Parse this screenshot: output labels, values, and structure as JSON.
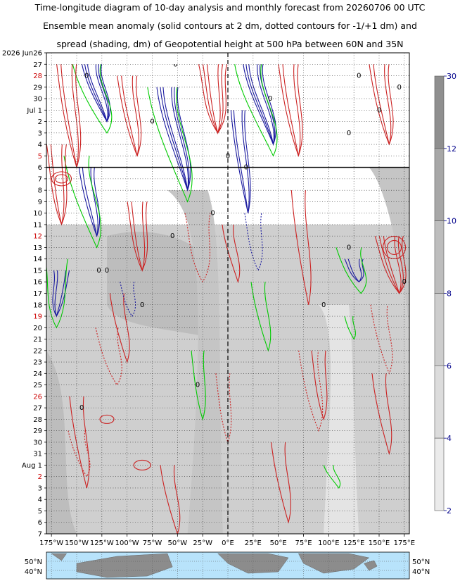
{
  "title": {
    "line1": "Time-longitude diagram of 10-day analysis and monthly forecast from 20260706 00 UTC",
    "line2": "Ensemble mean anomaly (solid contours at 2 dm, dotted contours for -1/+1 dm) and",
    "line3": "spread (shading, dm) of Geopotential height at 500 hPa between 60N and 35N"
  },
  "chart_data": {
    "type": "heatmap",
    "title": "Time-longitude diagram of 10-day analysis and monthly forecast from 20260706 00 UTC",
    "x_axis": {
      "range": [
        -180,
        180
      ],
      "ticks": [
        -175,
        -150,
        -125,
        -100,
        -75,
        -50,
        -25,
        0,
        25,
        50,
        75,
        100,
        125,
        150,
        175
      ],
      "tick_labels": [
        "175°W",
        "150°W",
        "125°W",
        "100°W",
        "75°W",
        "50°W",
        "25°W",
        "0°E",
        "25°E",
        "50°E",
        "75°E",
        "100°E",
        "125°E",
        "150°E",
        "175°E"
      ]
    },
    "y_axis": {
      "start": "2026 Jun 26",
      "labels": [
        {
          "text": "2026 Jun26",
          "red": false
        },
        {
          "text": "27",
          "red": false
        },
        {
          "text": "28",
          "red": true
        },
        {
          "text": "29",
          "red": false
        },
        {
          "text": "30",
          "red": false
        },
        {
          "text": "Jul  1",
          "red": false
        },
        {
          "text": "2",
          "red": false
        },
        {
          "text": "3",
          "red": false
        },
        {
          "text": "4",
          "red": false
        },
        {
          "text": "5",
          "red": true
        },
        {
          "text": "6",
          "red": false
        },
        {
          "text": "7",
          "red": false
        },
        {
          "text": "8",
          "red": false
        },
        {
          "text": "9",
          "red": false
        },
        {
          "text": "10",
          "red": false
        },
        {
          "text": "11",
          "red": false
        },
        {
          "text": "12",
          "red": true
        },
        {
          "text": "13",
          "red": false
        },
        {
          "text": "14",
          "red": false
        },
        {
          "text": "15",
          "red": false
        },
        {
          "text": "16",
          "red": false
        },
        {
          "text": "17",
          "red": false
        },
        {
          "text": "18",
          "red": false
        },
        {
          "text": "19",
          "red": true
        },
        {
          "text": "20",
          "red": false
        },
        {
          "text": "21",
          "red": false
        },
        {
          "text": "22",
          "red": false
        },
        {
          "text": "23",
          "red": false
        },
        {
          "text": "24",
          "red": false
        },
        {
          "text": "25",
          "red": false
        },
        {
          "text": "26",
          "red": true
        },
        {
          "text": "27",
          "red": false
        },
        {
          "text": "28",
          "red": false
        },
        {
          "text": "29",
          "red": false
        },
        {
          "text": "30",
          "red": false
        },
        {
          "text": "31",
          "red": false
        },
        {
          "text": "Aug  1",
          "red": false
        },
        {
          "text": "2",
          "red": true
        },
        {
          "text": "3",
          "red": false
        },
        {
          "text": "4",
          "red": false
        },
        {
          "text": "5",
          "red": false
        },
        {
          "text": "6",
          "red": false
        },
        {
          "text": "7",
          "red": false
        }
      ],
      "analysis_forecast_boundary": "Jul 6"
    },
    "colorbar": {
      "label_values": [
        30,
        12,
        10,
        8,
        6,
        4,
        2
      ],
      "colors": [
        "#8f8f8f",
        "#a7a7a7",
        "#bdbdbd",
        "#cdcdcd",
        "#dcdcdc",
        "#ebebeb"
      ]
    },
    "map_strip_labels": {
      "left_top": "50°N",
      "left_bottom": "40°N",
      "right_top": "50°N",
      "right_bottom": "40°N"
    },
    "contour_colors": {
      "positive": "#cc2222",
      "negative": "#1a1aa0",
      "zero": "#00cc00",
      "zero_dotted": "#3333ff"
    },
    "contour_labels": [
      "0",
      "0",
      "0",
      "0",
      "0",
      "0",
      "0",
      "0",
      "0",
      "0",
      "0",
      "0",
      "0",
      "0",
      "0",
      "0",
      "0",
      "0",
      "0",
      "0"
    ],
    "spread_regions": [
      {
        "lon_range": [
          -180,
          180
        ],
        "date_range": [
          "Jul 11",
          "Aug 7"
        ],
        "spread_dm": "4-6"
      },
      {
        "lon_range": [
          -120,
          -10
        ],
        "date_range": [
          "Jul 12",
          "Jul 25"
        ],
        "spread_dm": "6-8"
      },
      {
        "lon_range": [
          90,
          130
        ],
        "date_range": [
          "Jul 22",
          "Aug 7"
        ],
        "spread_dm": "2-4"
      }
    ]
  }
}
